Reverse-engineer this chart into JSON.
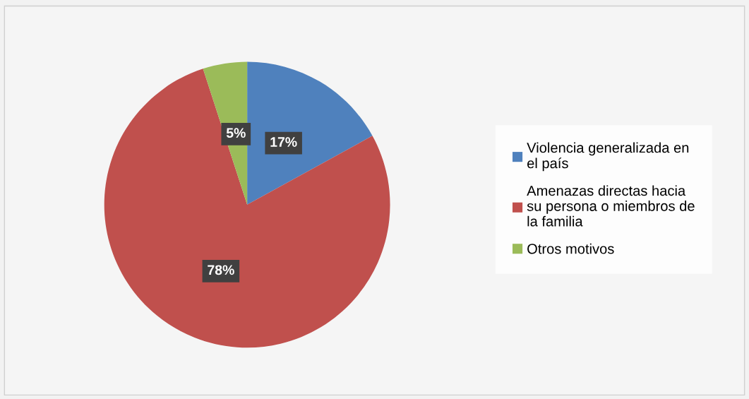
{
  "chart_data": {
    "type": "pie",
    "categories": [
      "Violencia generalizada en el país",
      "Amenazas directas hacia su persona o miembros de la familia",
      "Otros motivos"
    ],
    "values": [
      17,
      78,
      5
    ],
    "colors": [
      "#4f81bd",
      "#c0504d",
      "#9bbb59"
    ],
    "value_labels": [
      "17%",
      "78%",
      "5%"
    ],
    "legend": "right"
  }
}
